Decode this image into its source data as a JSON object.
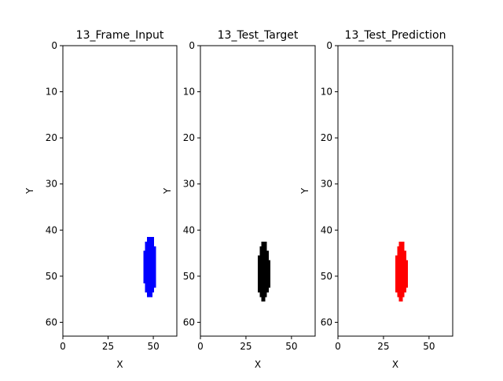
{
  "figure": {
    "background": "#ffffff"
  },
  "chart_data": [
    {
      "type": "heatmap",
      "title": "13_Frame_Input",
      "xlabel": "X",
      "ylabel": "Y",
      "x_ticks": [
        0,
        25,
        50
      ],
      "y_ticks": [
        0,
        10,
        20,
        30,
        40,
        50,
        60
      ],
      "xlim": [
        0,
        63
      ],
      "ylim": [
        63,
        0
      ],
      "y_inverted": true,
      "color": "#0000ff",
      "runs": [
        [
          42,
          47,
          50
        ],
        [
          43,
          46,
          50
        ],
        [
          44,
          46,
          51
        ],
        [
          45,
          45,
          51
        ],
        [
          46,
          45,
          51
        ],
        [
          47,
          45,
          51
        ],
        [
          48,
          45,
          51
        ],
        [
          49,
          45,
          51
        ],
        [
          50,
          45,
          51
        ],
        [
          51,
          45,
          51
        ],
        [
          52,
          46,
          51
        ],
        [
          53,
          46,
          50
        ],
        [
          54,
          47,
          49
        ]
      ]
    },
    {
      "type": "heatmap",
      "title": "13_Test_Target",
      "xlabel": "X",
      "ylabel": "Y",
      "x_ticks": [
        0,
        25,
        50
      ],
      "y_ticks": [
        0,
        10,
        20,
        30,
        40,
        50,
        60
      ],
      "xlim": [
        0,
        63
      ],
      "ylim": [
        63,
        0
      ],
      "y_inverted": true,
      "color": "#000000",
      "runs": [
        [
          43,
          34,
          36
        ],
        [
          44,
          33,
          36
        ],
        [
          45,
          33,
          37
        ],
        [
          46,
          32,
          37
        ],
        [
          47,
          32,
          38
        ],
        [
          48,
          32,
          38
        ],
        [
          49,
          32,
          38
        ],
        [
          50,
          32,
          38
        ],
        [
          51,
          32,
          38
        ],
        [
          52,
          32,
          38
        ],
        [
          53,
          32,
          37
        ],
        [
          54,
          33,
          36
        ],
        [
          55,
          34,
          35
        ]
      ]
    },
    {
      "type": "heatmap",
      "title": "13_Test_Prediction",
      "xlabel": "X",
      "ylabel": "Y",
      "x_ticks": [
        0,
        25,
        50
      ],
      "y_ticks": [
        0,
        10,
        20,
        30,
        40,
        50,
        60
      ],
      "xlim": [
        0,
        63
      ],
      "ylim": [
        63,
        0
      ],
      "y_inverted": true,
      "color": "#ff0000",
      "runs": [
        [
          43,
          34,
          36
        ],
        [
          44,
          33,
          36
        ],
        [
          45,
          33,
          37
        ],
        [
          46,
          32,
          37
        ],
        [
          47,
          32,
          38
        ],
        [
          48,
          32,
          38
        ],
        [
          49,
          32,
          38
        ],
        [
          50,
          32,
          38
        ],
        [
          51,
          32,
          38
        ],
        [
          52,
          32,
          38
        ],
        [
          53,
          32,
          37
        ],
        [
          54,
          33,
          36
        ],
        [
          55,
          34,
          35
        ]
      ]
    }
  ]
}
